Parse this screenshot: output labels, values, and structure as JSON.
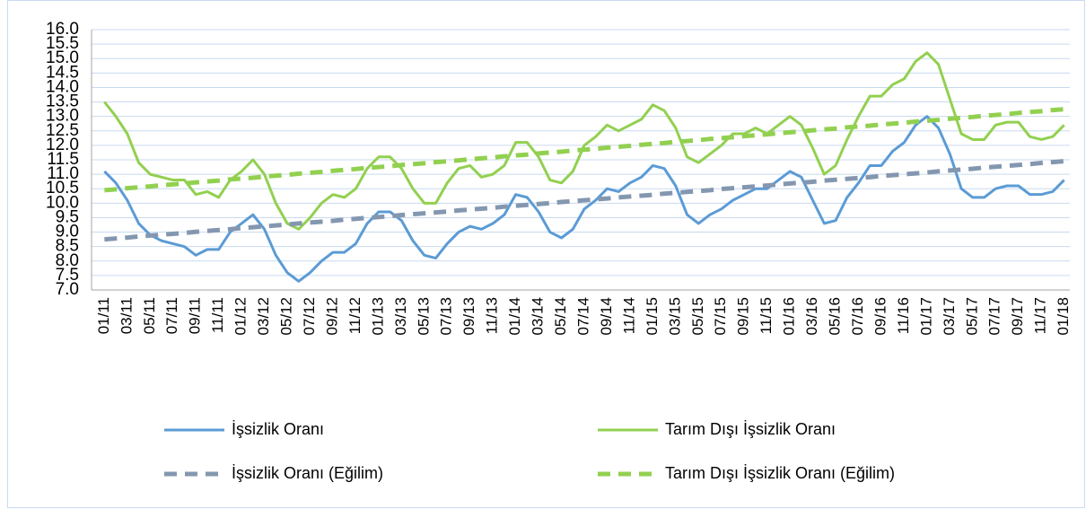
{
  "chart_data": {
    "type": "line",
    "categories": [
      "01/11",
      null,
      "03/11",
      null,
      "05/11",
      null,
      "07/11",
      null,
      "09/11",
      null,
      "11/11",
      null,
      "01/12",
      null,
      "03/12",
      null,
      "05/12",
      null,
      "07/12",
      null,
      "09/12",
      null,
      "11/12",
      null,
      "01/13",
      null,
      "03/13",
      null,
      "05/13",
      null,
      "07/13",
      null,
      "09/13",
      null,
      "11/13",
      null,
      "01/14",
      null,
      "03/14",
      null,
      "05/14",
      null,
      "07/14",
      null,
      "09/14",
      null,
      "11/14",
      null,
      "01/15",
      null,
      "03/15",
      null,
      "05/15",
      null,
      "07/15",
      null,
      "09/15",
      null,
      "11/15",
      null,
      "01/16",
      null,
      "03/16",
      null,
      "05/16",
      null,
      "07/16",
      null,
      "09/16",
      null,
      "11/16",
      null,
      "01/17",
      null,
      "03/17",
      null,
      "05/17",
      null,
      "07/17",
      null,
      "09/17",
      null,
      "11/17",
      null,
      "01/18"
    ],
    "series": [
      {
        "name": "İşsizlik Oranı",
        "color": "#5b9bd5",
        "dashed": false,
        "values": [
          11.1,
          10.7,
          10.1,
          9.3,
          8.9,
          8.7,
          8.6,
          8.5,
          8.2,
          8.4,
          8.4,
          9.0,
          9.3,
          9.6,
          9.1,
          8.2,
          7.6,
          7.3,
          7.6,
          8.0,
          8.3,
          8.3,
          8.6,
          9.3,
          9.7,
          9.7,
          9.4,
          8.7,
          8.2,
          8.1,
          8.6,
          9.0,
          9.2,
          9.1,
          9.3,
          9.6,
          10.3,
          10.2,
          9.7,
          9.0,
          8.8,
          9.1,
          9.8,
          10.1,
          10.5,
          10.4,
          10.7,
          10.9,
          11.3,
          11.2,
          10.6,
          9.6,
          9.3,
          9.6,
          9.8,
          10.1,
          10.3,
          10.5,
          10.5,
          10.8,
          11.1,
          10.9,
          10.1,
          9.3,
          9.4,
          10.2,
          10.7,
          11.3,
          11.3,
          11.8,
          12.1,
          12.7,
          13.0,
          12.6,
          11.7,
          10.5,
          10.2,
          10.2,
          10.5,
          10.6,
          10.6,
          10.3,
          10.3,
          10.4,
          10.8
        ]
      },
      {
        "name": "Tarım Dışı İşsizlik Oranı",
        "color": "#92d050",
        "dashed": false,
        "values": [
          13.5,
          13.0,
          12.4,
          11.4,
          11.0,
          10.9,
          10.8,
          10.8,
          10.3,
          10.4,
          10.2,
          10.8,
          11.1,
          11.5,
          11.0,
          10.0,
          9.3,
          9.1,
          9.5,
          10.0,
          10.3,
          10.2,
          10.5,
          11.2,
          11.6,
          11.6,
          11.2,
          10.5,
          10.0,
          10.0,
          10.7,
          11.2,
          11.3,
          10.9,
          11.0,
          11.3,
          12.1,
          12.1,
          11.6,
          10.8,
          10.7,
          11.1,
          12.0,
          12.3,
          12.7,
          12.5,
          12.7,
          12.9,
          13.4,
          13.2,
          12.6,
          11.6,
          11.4,
          11.7,
          12.0,
          12.4,
          12.4,
          12.6,
          12.4,
          12.7,
          13.0,
          12.7,
          11.9,
          11.0,
          11.3,
          12.2,
          13.0,
          13.7,
          13.7,
          14.1,
          14.3,
          14.9,
          15.2,
          14.8,
          13.6,
          12.4,
          12.2,
          12.2,
          12.7,
          12.8,
          12.8,
          12.3,
          12.2,
          12.3,
          12.7
        ]
      },
      {
        "name": "İşsizlik Oranı (Eğilim)",
        "color": "#8497b0",
        "dashed": true,
        "values": [
          8.75,
          8.78,
          8.81,
          8.85,
          8.88,
          8.91,
          8.94,
          8.97,
          9.01,
          9.04,
          9.07,
          9.1,
          9.14,
          9.17,
          9.2,
          9.23,
          9.26,
          9.3,
          9.33,
          9.36,
          9.39,
          9.43,
          9.46,
          9.49,
          9.52,
          9.55,
          9.59,
          9.62,
          9.65,
          9.68,
          9.71,
          9.75,
          9.78,
          9.81,
          9.84,
          9.88,
          9.91,
          9.94,
          9.97,
          10.0,
          10.04,
          10.07,
          10.1,
          10.13,
          10.16,
          10.2,
          10.23,
          10.26,
          10.29,
          10.33,
          10.36,
          10.39,
          10.42,
          10.45,
          10.49,
          10.52,
          10.55,
          10.58,
          10.61,
          10.65,
          10.68,
          10.71,
          10.74,
          10.78,
          10.81,
          10.84,
          10.87,
          10.9,
          10.94,
          10.97,
          11.0,
          11.03,
          11.06,
          11.1,
          11.13,
          11.16,
          11.19,
          11.23,
          11.26,
          11.29,
          11.32,
          11.35,
          11.39,
          11.42,
          11.45
        ]
      },
      {
        "name": "Tarım Dışı İşsizlik Oranı (Eğilim)",
        "color": "#92d050",
        "dashed": true,
        "values": [
          10.45,
          10.48,
          10.52,
          10.55,
          10.58,
          10.62,
          10.65,
          10.68,
          10.72,
          10.75,
          10.78,
          10.82,
          10.85,
          10.88,
          10.92,
          10.95,
          10.98,
          11.02,
          11.05,
          11.08,
          11.12,
          11.15,
          11.18,
          11.22,
          11.25,
          11.28,
          11.32,
          11.35,
          11.38,
          11.42,
          11.45,
          11.48,
          11.52,
          11.55,
          11.58,
          11.62,
          11.65,
          11.68,
          11.72,
          11.75,
          11.78,
          11.82,
          11.85,
          11.88,
          11.92,
          11.95,
          11.98,
          12.02,
          12.05,
          12.08,
          12.12,
          12.15,
          12.18,
          12.22,
          12.25,
          12.28,
          12.32,
          12.35,
          12.38,
          12.42,
          12.45,
          12.48,
          12.52,
          12.55,
          12.58,
          12.62,
          12.65,
          12.68,
          12.72,
          12.75,
          12.78,
          12.82,
          12.85,
          12.88,
          12.92,
          12.95,
          12.98,
          13.02,
          13.05,
          13.08,
          13.12,
          13.15,
          13.18,
          13.22,
          13.25
        ]
      }
    ],
    "ylim": [
      7,
      16
    ],
    "yticks": [
      {
        "value": 7,
        "label": "7.0"
      },
      7.5,
      {
        "value": 8,
        "label": "8.0"
      },
      8.5,
      {
        "value": 9,
        "label": "9.0"
      },
      9.5,
      {
        "value": 10,
        "label": "10.0"
      },
      10.5,
      {
        "value": 11,
        "label": "11.0"
      },
      11.5,
      {
        "value": 12,
        "label": "12.0"
      },
      12.5,
      {
        "value": 13,
        "label": "13.0"
      },
      13.5,
      {
        "value": 14,
        "label": "14.0"
      },
      14.5,
      {
        "value": 15,
        "label": "15.0"
      },
      15.5,
      {
        "value": 16,
        "label": "16.0"
      }
    ],
    "grid": true,
    "legend": "bottom"
  }
}
